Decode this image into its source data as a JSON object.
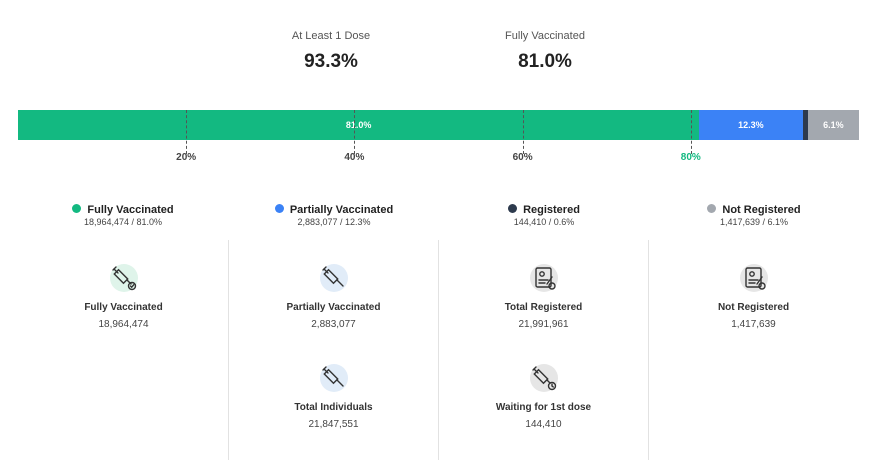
{
  "summary": {
    "at_least_one": {
      "label": "At Least 1 Dose",
      "value": "93.3%"
    },
    "fully": {
      "label": "Fully Vaccinated",
      "value": "81.0%"
    }
  },
  "chart_data": {
    "type": "bar",
    "orientation": "horizontal-stacked",
    "series": [
      {
        "name": "Fully Vaccinated",
        "value": 81.0,
        "label": "81.0%",
        "color": "#13b981"
      },
      {
        "name": "Partially Vaccinated",
        "value": 12.3,
        "label": "12.3%",
        "color": "#3b82f6"
      },
      {
        "name": "Registered",
        "value": 0.6,
        "label": "",
        "color": "#2d3a4d"
      },
      {
        "name": "Not Registered",
        "value": 6.1,
        "label": "6.1%",
        "color": "#a3a8af"
      }
    ],
    "xlim": [
      0,
      100
    ],
    "ticks": [
      {
        "value": 20,
        "label": "20%",
        "color": "#444444"
      },
      {
        "value": 40,
        "label": "40%",
        "color": "#444444"
      },
      {
        "value": 60,
        "label": "60%",
        "color": "#444444"
      },
      {
        "value": 80,
        "label": "80%",
        "color": "#13b981"
      }
    ]
  },
  "legend": [
    {
      "name": "Fully Vaccinated",
      "detail": "18,964,474 / 81.0%",
      "color": "#13b981"
    },
    {
      "name": "Partially Vaccinated",
      "detail": "2,883,077 / 12.3%",
      "color": "#3b82f6"
    },
    {
      "name": "Registered",
      "detail": "144,410 / 0.6%",
      "color": "#2d3a4d"
    },
    {
      "name": "Not Registered",
      "detail": "1,417,639 / 6.1%",
      "color": "#a3a8af"
    }
  ],
  "cards": {
    "fully": {
      "title": "Fully Vaccinated",
      "value": "18,964,474",
      "icon": "syringe-check-icon"
    },
    "partial": {
      "title": "Partially Vaccinated",
      "value": "2,883,077",
      "icon": "syringe-icon"
    },
    "total_individuals": {
      "title": "Total Individuals",
      "value": "21,847,551",
      "icon": "syringe-icon"
    },
    "total_registered": {
      "title": "Total Registered",
      "value": "21,991,961",
      "icon": "registration-certificate-icon"
    },
    "waiting": {
      "title": "Waiting for 1st dose",
      "value": "144,410",
      "icon": "syringe-clock-icon"
    },
    "not_registered": {
      "title": "Not Registered",
      "value": "1,417,639",
      "icon": "registration-certificate-icon"
    }
  }
}
